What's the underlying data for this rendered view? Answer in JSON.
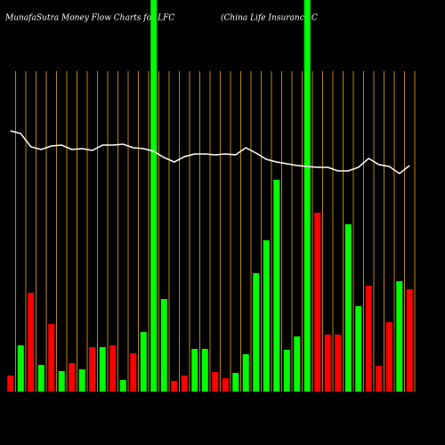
{
  "chart_data": {
    "type": "bar",
    "title": "MunafaSutra  Money Flow  Charts for LFC",
    "subtitle": "(China  Life   Insurance   C",
    "categories": [
      null,
      null,
      null,
      null,
      null,
      null,
      null,
      null,
      null,
      null,
      null,
      null,
      null,
      null,
      null,
      null,
      null,
      null,
      null,
      null,
      null,
      null,
      null,
      null,
      null,
      null,
      null,
      null,
      null,
      null,
      null,
      null,
      null,
      null,
      null,
      null,
      null,
      null,
      null,
      null
    ],
    "values": [
      18,
      52,
      111,
      30,
      76,
      23,
      32,
      25,
      50,
      50,
      52,
      13,
      43,
      67,
      440,
      104,
      12,
      18,
      48,
      48,
      22,
      15,
      21,
      42,
      133,
      170,
      238,
      47,
      62,
      440,
      201,
      64,
      64,
      188,
      96,
      119,
      29,
      78,
      124,
      115
    ],
    "colors": [
      "#ff0000",
      "#00ff00",
      "#ff0000",
      "#00ff00",
      "#ff0000",
      "#00ff00",
      "#ff0000",
      "#00ff00",
      "#ff0000",
      "#00ff00",
      "#ff0000",
      "#00ff00",
      "#ff0000",
      "#00ff00",
      "#00ff00",
      "#00ff00",
      "#ff0000",
      "#ff0000",
      "#00ff00",
      "#00ff00",
      "#ff0000",
      "#ff0000",
      "#00ff00",
      "#00ff00",
      "#00ff00",
      "#00ff00",
      "#00ff00",
      "#00ff00",
      "#00ff00",
      "#00ff00",
      "#ff0000",
      "#ff0000",
      "#ff0000",
      "#00ff00",
      "#00ff00",
      "#ff0000",
      "#ff0000",
      "#ff0000",
      "#00ff00",
      "#ff0000"
    ],
    "line_values": [
      293,
      290,
      275,
      272,
      276,
      277,
      272,
      273,
      271,
      277,
      277,
      278,
      274,
      273,
      270,
      263,
      258,
      264,
      267,
      267,
      266,
      267,
      266,
      274,
      268,
      261,
      258,
      256,
      254,
      253,
      252,
      252,
      248,
      248,
      252,
      262,
      255,
      253,
      245,
      254
    ],
    "line_color": "#ffffff",
    "grid_color": "#b8860b",
    "ylim": [
      0,
      440
    ]
  }
}
